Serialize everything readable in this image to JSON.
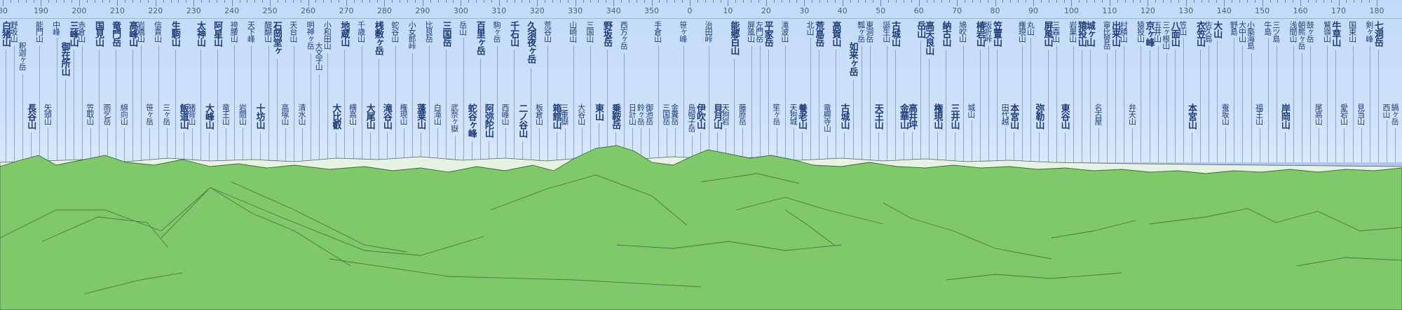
{
  "scale_labels": [
    "80",
    "190",
    "200",
    "210",
    "220",
    "230",
    "240",
    "250",
    "260",
    "270",
    "280",
    "290",
    "300",
    "310",
    "320",
    "330",
    "340",
    "350",
    "0",
    "10",
    "20",
    "30",
    "40",
    "50",
    "60",
    "70",
    "80",
    "90",
    "100",
    "110",
    "120",
    "130",
    "140",
    "150",
    "160",
    "170",
    "180"
  ],
  "peaks": [
    {
      "name": "白猪山",
      "big": true,
      "row": 0
    },
    {
      "name": "野坂山",
      "big": false,
      "row": 1
    },
    {
      "name": "釈迦ヶ岳",
      "big": false,
      "row": 2
    },
    {
      "name": "長谷山",
      "big": true,
      "row": 3
    },
    {
      "name": "能門山",
      "big": false,
      "row": 0
    },
    {
      "name": "矢頭山",
      "big": false,
      "row": 3
    },
    {
      "name": "中峰",
      "big": false,
      "row": 0
    },
    {
      "name": "御在所山",
      "big": true,
      "row": 2
    },
    {
      "name": "三峰山",
      "big": true,
      "row": 0
    },
    {
      "name": "赤倉山",
      "big": false,
      "row": 0
    },
    {
      "name": "笠取山",
      "big": false,
      "row": 3
    },
    {
      "name": "国見山",
      "big": true,
      "row": 0
    },
    {
      "name": "雨乞岳",
      "big": false,
      "row": 3
    },
    {
      "name": "竜門岳",
      "big": true,
      "row": 0
    },
    {
      "name": "綿向山",
      "big": false,
      "row": 3
    },
    {
      "name": "高峰山",
      "big": true,
      "row": 0
    },
    {
      "name": "岩橋山",
      "big": false,
      "row": 0
    },
    {
      "name": "笹ヶ岳",
      "big": false,
      "row": 3
    },
    {
      "name": "信貴山",
      "big": false,
      "row": 0
    },
    {
      "name": "三ヶ岳",
      "big": false,
      "row": 3
    },
    {
      "name": "生駒山",
      "big": true,
      "row": 0
    },
    {
      "name": "飯道山",
      "big": true,
      "row": 3
    },
    {
      "name": "猪背山",
      "big": false,
      "row": 3
    },
    {
      "name": "太神山",
      "big": true,
      "row": 0
    },
    {
      "name": "大峰山",
      "big": true,
      "row": 3
    },
    {
      "name": "阿星山",
      "big": true,
      "row": 0
    },
    {
      "name": "竜王山",
      "big": false,
      "row": 3
    },
    {
      "name": "袴腰山",
      "big": false,
      "row": 0
    },
    {
      "name": "岩間山",
      "big": false,
      "row": 3
    },
    {
      "name": "天下峰",
      "big": false,
      "row": 0
    },
    {
      "name": "十坊山",
      "big": true,
      "row": 3
    },
    {
      "name": "醍醐山",
      "big": false,
      "row": 0
    },
    {
      "name": "石岡堂ヶ",
      "big": true,
      "row": 0
    },
    {
      "name": "高塚山",
      "big": false,
      "row": 3
    },
    {
      "name": "天台山",
      "big": false,
      "row": 0
    },
    {
      "name": "清水山",
      "big": false,
      "row": 3
    },
    {
      "name": "明神ヶ岳",
      "big": false,
      "row": 0
    },
    {
      "name": "大文字山",
      "big": false,
      "row": 2
    },
    {
      "name": "小和田山",
      "big": false,
      "row": 0
    },
    {
      "name": "大比叡",
      "big": true,
      "row": 3
    },
    {
      "name": "地蔵山",
      "big": true,
      "row": 0
    },
    {
      "name": "横高山",
      "big": false,
      "row": 3
    },
    {
      "name": "千歳山",
      "big": false,
      "row": 0
    },
    {
      "name": "大尾山",
      "big": true,
      "row": 3
    },
    {
      "name": "桟敷ヶ岳",
      "big": true,
      "row": 0
    },
    {
      "name": "滝谷山",
      "big": true,
      "row": 3
    },
    {
      "name": "蛇谷山",
      "big": false,
      "row": 0
    },
    {
      "name": "権現山",
      "big": false,
      "row": 3
    },
    {
      "name": "小女郎峠",
      "big": false,
      "row": 0
    },
    {
      "name": "蓬莱山",
      "big": true,
      "row": 3
    },
    {
      "name": "比良岳",
      "big": false,
      "row": 0
    },
    {
      "name": "白滝山",
      "big": false,
      "row": 3
    },
    {
      "name": "三国岳",
      "big": true,
      "row": 0
    },
    {
      "name": "武奈ヶ嶽",
      "big": false,
      "row": 3
    },
    {
      "name": "岳山",
      "big": false,
      "row": 0
    },
    {
      "name": "蛇谷ヶ峰",
      "big": true,
      "row": 3
    },
    {
      "name": "百里ヶ岳",
      "big": true,
      "row": 0
    },
    {
      "name": "阿弥陀山",
      "big": true,
      "row": 3
    },
    {
      "name": "駒ヶ岳",
      "big": false,
      "row": 0
    },
    {
      "name": "西峰山",
      "big": false,
      "row": 3
    },
    {
      "name": "千石山",
      "big": true,
      "row": 0
    },
    {
      "name": "二ノ谷山",
      "big": true,
      "row": 3
    },
    {
      "name": "久須夜ヶ岳",
      "big": true,
      "row": 0
    },
    {
      "name": "板倉山",
      "big": false,
      "row": 3
    },
    {
      "name": "荒谷山",
      "big": false,
      "row": 0
    },
    {
      "name": "箱館山",
      "big": true,
      "row": 3
    },
    {
      "name": "三重嶽",
      "big": false,
      "row": 3
    },
    {
      "name": "山崎山",
      "big": false,
      "row": 0
    },
    {
      "name": "大谷山",
      "big": false,
      "row": 3
    },
    {
      "name": "三国山",
      "big": false,
      "row": 0
    },
    {
      "name": "東山",
      "big": true,
      "row": 3
    },
    {
      "name": "野坂岳",
      "big": true,
      "row": 0
    },
    {
      "name": "乗鞍岳",
      "big": true,
      "row": 3
    },
    {
      "name": "西方ヶ岳",
      "big": false,
      "row": 0
    },
    {
      "name": "日計山",
      "big": false,
      "row": 3
    },
    {
      "name": "鈴ヶ岳",
      "big": false,
      "row": 3
    },
    {
      "name": "御池岳",
      "big": false,
      "row": 3
    },
    {
      "name": "手倉山",
      "big": false,
      "row": 0
    },
    {
      "name": "三国岳",
      "big": false,
      "row": 3
    },
    {
      "name": "金糞岳",
      "big": false,
      "row": 3
    },
    {
      "name": "笹ヶ峰",
      "big": false,
      "row": 0
    },
    {
      "name": "烏帽子岳",
      "big": false,
      "row": 3
    },
    {
      "name": "伊吹山",
      "big": true,
      "row": 3
    },
    {
      "name": "治田峠",
      "big": false,
      "row": 0
    },
    {
      "name": "貝月山",
      "big": true,
      "row": 3
    },
    {
      "name": "天狗岩",
      "big": false,
      "row": 3
    },
    {
      "name": "能郷白山",
      "big": true,
      "row": 0
    },
    {
      "name": "藤原岳",
      "big": false,
      "row": 3
    },
    {
      "name": "屏風山",
      "big": false,
      "row": 0
    },
    {
      "name": "左門岳",
      "big": false,
      "row": 0
    },
    {
      "name": "平家岳",
      "big": true,
      "row": 0
    },
    {
      "name": "笙ヶ岳",
      "big": false,
      "row": 3
    },
    {
      "name": "滝波山",
      "big": false,
      "row": 0
    },
    {
      "name": "天狗城",
      "big": false,
      "row": 3
    },
    {
      "name": "養老山",
      "big": true,
      "row": 3
    },
    {
      "name": "北山",
      "big": false,
      "row": 0
    },
    {
      "name": "荒島岳",
      "big": true,
      "row": 0
    },
    {
      "name": "竜興寺山",
      "big": false,
      "row": 3
    },
    {
      "name": "高賀山",
      "big": true,
      "row": 0
    },
    {
      "name": "古城山",
      "big": true,
      "row": 3
    },
    {
      "name": "如来ヶ岳",
      "big": true,
      "row": 2
    },
    {
      "name": "瓢ヶ岳",
      "big": false,
      "row": 0
    },
    {
      "name": "東洞岳",
      "big": false,
      "row": 0
    },
    {
      "name": "天王山",
      "big": true,
      "row": 3
    },
    {
      "name": "誕生山",
      "big": false,
      "row": 0
    },
    {
      "name": "古城山",
      "big": true,
      "row": 0
    },
    {
      "name": "金華山",
      "big": true,
      "row": 3
    },
    {
      "name": "高井坪",
      "big": true,
      "row": 3
    },
    {
      "name": "岳山",
      "big": true,
      "row": 0
    },
    {
      "name": "高天良山",
      "big": true,
      "row": 0
    },
    {
      "name": "権現山",
      "big": true,
      "row": 3
    },
    {
      "name": "納古山",
      "big": true,
      "row": 0
    },
    {
      "name": "三井山",
      "big": true,
      "row": 3
    },
    {
      "name": "鳩吹山",
      "big": false,
      "row": 0
    },
    {
      "name": "城山",
      "big": false,
      "row": 3
    },
    {
      "name": "椿岩山",
      "big": true,
      "row": 0
    },
    {
      "name": "坂折峠",
      "big": false,
      "row": 0
    },
    {
      "name": "笠置山",
      "big": true,
      "row": 0
    },
    {
      "name": "田代越",
      "big": false,
      "row": 3
    },
    {
      "name": "本宮山",
      "big": true,
      "row": 3
    },
    {
      "name": "権現山",
      "big": false,
      "row": 0
    },
    {
      "name": "丸山",
      "big": false,
      "row": 0
    },
    {
      "name": "弥勒山",
      "big": true,
      "row": 3
    },
    {
      "name": "屏風山",
      "big": true,
      "row": 0
    },
    {
      "name": "三森山",
      "big": false,
      "row": 0
    },
    {
      "name": "東谷山",
      "big": true,
      "row": 3
    },
    {
      "name": "岩巣山",
      "big": false,
      "row": 0
    },
    {
      "name": "猿投山",
      "big": true,
      "row": 0
    },
    {
      "name": "城ヶ山",
      "big": true,
      "row": 0
    },
    {
      "name": "名古屋",
      "big": false,
      "row": 3
    },
    {
      "name": "寧比曽岳",
      "big": false,
      "row": 0
    },
    {
      "name": "出来山",
      "big": true,
      "row": 0
    },
    {
      "name": "村積山",
      "big": false,
      "row": 0
    },
    {
      "name": "弁天山",
      "big": false,
      "row": 3
    },
    {
      "name": "猿投山",
      "big": false,
      "row": 0
    },
    {
      "name": "京ヶ峰",
      "big": true,
      "row": 0
    },
    {
      "name": "五井山",
      "big": false,
      "row": 0
    },
    {
      "name": "三ヶ根山",
      "big": false,
      "row": 0
    },
    {
      "name": "八面山",
      "big": true,
      "row": 0
    },
    {
      "name": "笠山",
      "big": false,
      "row": 0
    },
    {
      "name": "本宮山",
      "big": true,
      "row": 3
    },
    {
      "name": "衣笠山",
      "big": true,
      "row": 0
    },
    {
      "name": "佐久島",
      "big": false,
      "row": 0
    },
    {
      "name": "大山",
      "big": true,
      "row": 0
    },
    {
      "name": "蚕坂山",
      "big": false,
      "row": 3
    },
    {
      "name": "野島",
      "big": false,
      "row": 0
    },
    {
      "name": "大中山",
      "big": false,
      "row": 0
    },
    {
      "name": "小築海島",
      "big": false,
      "row": 0
    },
    {
      "name": "福王山",
      "big": false,
      "row": 3
    },
    {
      "name": "牛島",
      "big": false,
      "row": 0
    },
    {
      "name": "三ツ島",
      "big": false,
      "row": 0
    },
    {
      "name": "岸岡山",
      "big": true,
      "row": 3
    },
    {
      "name": "浅間山",
      "big": false,
      "row": 0
    },
    {
      "name": "朝熊ヶ岳",
      "big": false,
      "row": 0
    },
    {
      "name": "鼓ヶ岳",
      "big": false,
      "row": 0
    },
    {
      "name": "尾高山",
      "big": false,
      "row": 3
    },
    {
      "name": "鷲嶺山",
      "big": false,
      "row": 0
    },
    {
      "name": "牛草山",
      "big": true,
      "row": 0
    },
    {
      "name": "愛宕山",
      "big": false,
      "row": 3
    },
    {
      "name": "国束山",
      "big": false,
      "row": 0
    },
    {
      "name": "見当山",
      "big": false,
      "row": 3
    },
    {
      "name": "剣ヶ峰",
      "big": false,
      "row": 0
    },
    {
      "name": "七洞岳",
      "big": true,
      "row": 0
    },
    {
      "name": "西山",
      "big": false,
      "row": 3
    },
    {
      "name": "鍋ヶ岳",
      "big": false,
      "row": 3
    }
  ]
}
